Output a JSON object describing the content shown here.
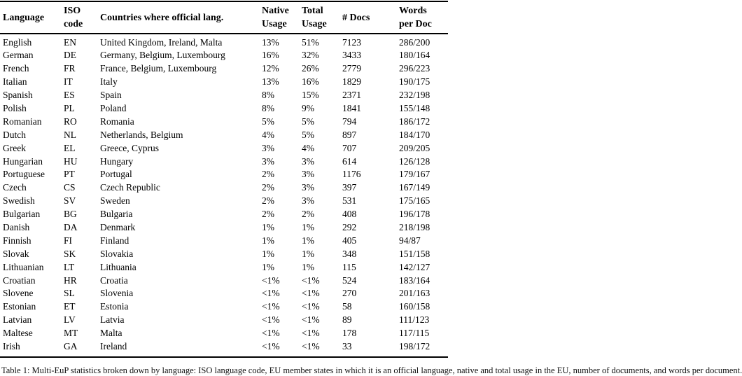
{
  "table": {
    "columns": [
      {
        "key": "language",
        "label": "Language",
        "lines": [
          "Language"
        ]
      },
      {
        "key": "iso",
        "label": "ISO code",
        "lines": [
          "ISO",
          "code"
        ]
      },
      {
        "key": "countries",
        "label": "Countries where official lang.",
        "lines": [
          "Countries where official lang."
        ]
      },
      {
        "key": "native",
        "label": "Native Usage",
        "lines": [
          "Native",
          "Usage"
        ]
      },
      {
        "key": "total",
        "label": "Total Usage",
        "lines": [
          "Total",
          "Usage"
        ]
      },
      {
        "key": "docs",
        "label": "# Docs",
        "lines": [
          "# Docs"
        ]
      },
      {
        "key": "words",
        "label": "Words per Doc",
        "lines": [
          "Words",
          "per Doc"
        ]
      }
    ],
    "rows": [
      [
        "English",
        "EN",
        "United Kingdom, Ireland, Malta",
        "13%",
        "51%",
        "7123",
        "286/200"
      ],
      [
        "German",
        "DE",
        "Germany, Belgium, Luxembourg",
        "16%",
        "32%",
        "3433",
        "180/164"
      ],
      [
        "French",
        "FR",
        "France, Belgium, Luxembourg",
        "12%",
        "26%",
        "2779",
        "296/223"
      ],
      [
        "Italian",
        "IT",
        "Italy",
        "13%",
        "16%",
        "1829",
        "190/175"
      ],
      [
        "Spanish",
        "ES",
        "Spain",
        "8%",
        "15%",
        "2371",
        "232/198"
      ],
      [
        "Polish",
        "PL",
        "Poland",
        "8%",
        "9%",
        "1841",
        "155/148"
      ],
      [
        "Romanian",
        "RO",
        "Romania",
        "5%",
        "5%",
        "794",
        "186/172"
      ],
      [
        "Dutch",
        "NL",
        "Netherlands, Belgium",
        "4%",
        "5%",
        "897",
        "184/170"
      ],
      [
        "Greek",
        "EL",
        "Greece, Cyprus",
        "3%",
        "4%",
        "707",
        "209/205"
      ],
      [
        "Hungarian",
        "HU",
        "Hungary",
        "3%",
        "3%",
        "614",
        "126/128"
      ],
      [
        "Portuguese",
        "PT",
        "Portugal",
        "2%",
        "3%",
        "1176",
        "179/167"
      ],
      [
        "Czech",
        "CS",
        "Czech Republic",
        "2%",
        "3%",
        "397",
        "167/149"
      ],
      [
        "Swedish",
        "SV",
        "Sweden",
        "2%",
        "3%",
        "531",
        "175/165"
      ],
      [
        "Bulgarian",
        "BG",
        "Bulgaria",
        "2%",
        "2%",
        "408",
        "196/178"
      ],
      [
        "Danish",
        "DA",
        "Denmark",
        "1%",
        "1%",
        "292",
        "218/198"
      ],
      [
        "Finnish",
        "FI",
        "Finland",
        "1%",
        "1%",
        "405",
        "94/87"
      ],
      [
        "Slovak",
        "SK",
        "Slovakia",
        "1%",
        "1%",
        "348",
        "151/158"
      ],
      [
        "Lithuanian",
        "LT",
        "Lithuania",
        "1%",
        "1%",
        "115",
        "142/127"
      ],
      [
        "Croatian",
        "HR",
        "Croatia",
        "<1%",
        "<1%",
        "524",
        "183/164"
      ],
      [
        "Slovene",
        "SL",
        "Slovenia",
        "<1%",
        "<1%",
        "270",
        "201/163"
      ],
      [
        "Estonian",
        "ET",
        "Estonia",
        "<1%",
        "<1%",
        "58",
        "160/158"
      ],
      [
        "Latvian",
        "LV",
        "Latvia",
        "<1%",
        "<1%",
        "89",
        "111/123"
      ],
      [
        "Maltese",
        "MT",
        "Malta",
        "<1%",
        "<1%",
        "178",
        "117/115"
      ],
      [
        "Irish",
        "GA",
        "Ireland",
        "<1%",
        "<1%",
        "33",
        "198/172"
      ]
    ]
  },
  "caption": "Table 1: Multi-EuP statistics broken down by language: ISO language code, EU member states in which it is an official language, native and total usage in the EU, number of documents, and words per document."
}
